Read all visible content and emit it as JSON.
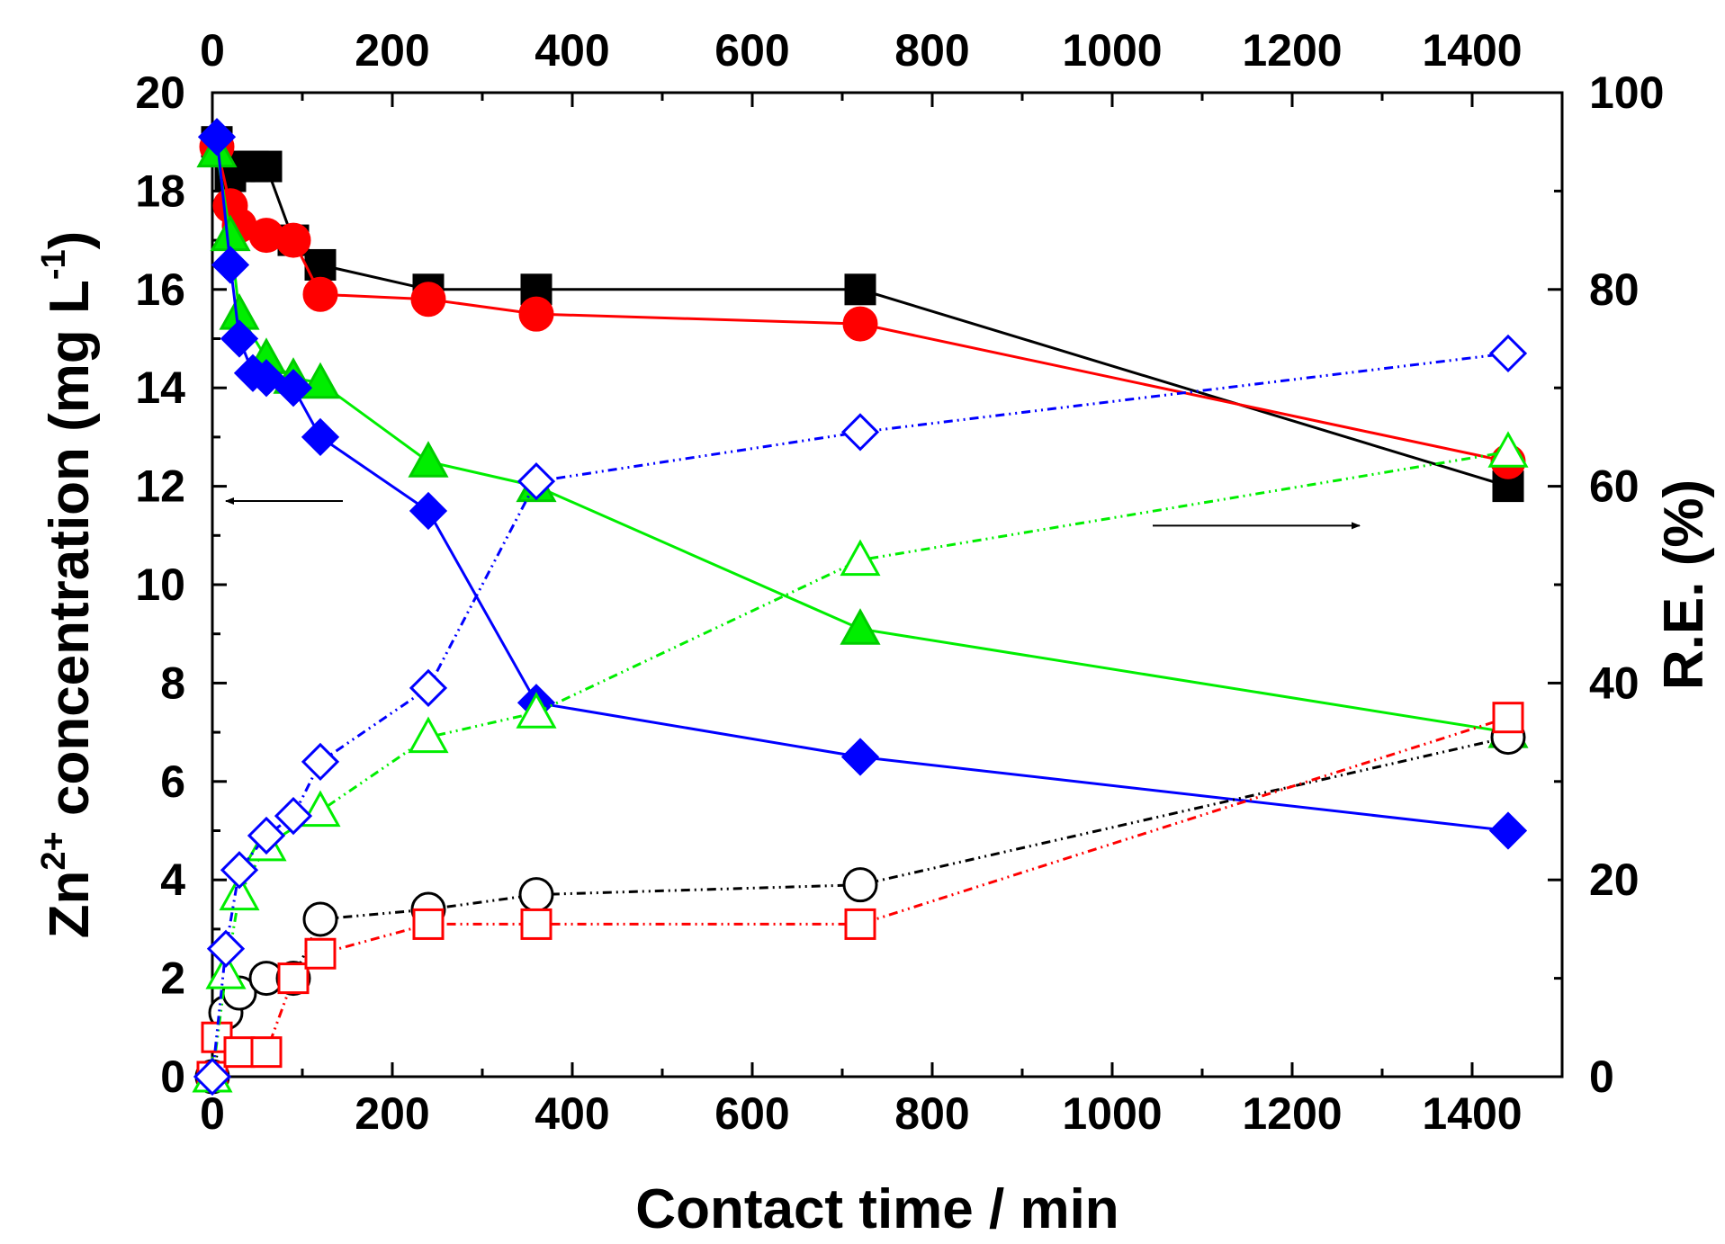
{
  "chart_data": {
    "type": "scatter",
    "title": "",
    "xlabel": "Contact time / min",
    "ylabel_left": {
      "prefix": "Zn",
      "superscript": "2+",
      "suffix": " concentration (mg L",
      "unit_superscript": "-1",
      "close": ")"
    },
    "ylabel_right": "R.E. (%)",
    "xlim": [
      0,
      1500
    ],
    "ylim_left": [
      0,
      20
    ],
    "ylim_right": [
      0,
      100
    ],
    "x_ticks": [
      0,
      200,
      400,
      600,
      800,
      1000,
      1200,
      1400
    ],
    "y_left_ticks": [
      0,
      2,
      4,
      6,
      8,
      10,
      12,
      14,
      16,
      18,
      20
    ],
    "y_right_ticks": [
      0,
      20,
      40,
      60,
      80,
      100
    ],
    "grid": false,
    "series": [
      {
        "name": "black-squares-filled",
        "axis": "left",
        "marker": "square",
        "filled": true,
        "color": "#000000",
        "line": "solid",
        "x": [
          5,
          20,
          30,
          45,
          60,
          90,
          120,
          240,
          360,
          720,
          1440
        ],
        "y": [
          19.0,
          18.3,
          18.5,
          18.5,
          18.5,
          17.0,
          16.5,
          16.0,
          16.0,
          16.0,
          12.0
        ]
      },
      {
        "name": "red-circles-filled",
        "axis": "left",
        "marker": "circle",
        "filled": true,
        "color": "#ff0000",
        "line": "solid",
        "x": [
          5,
          20,
          30,
          60,
          90,
          120,
          240,
          360,
          720,
          1440
        ],
        "y": [
          18.9,
          17.7,
          17.3,
          17.1,
          17.0,
          15.9,
          15.8,
          15.5,
          15.3,
          12.5
        ]
      },
      {
        "name": "green-triangles-filled",
        "axis": "left",
        "marker": "triangle",
        "filled": true,
        "color": "#00ee00",
        "line": "solid",
        "x": [
          5,
          20,
          30,
          60,
          90,
          120,
          240,
          360,
          720,
          1440
        ],
        "y": [
          18.8,
          17.1,
          15.5,
          14.6,
          14.2,
          14.1,
          12.5,
          12.0,
          9.1,
          7.0
        ]
      },
      {
        "name": "blue-diamonds-filled",
        "axis": "left",
        "marker": "diamond",
        "filled": true,
        "color": "#0000ff",
        "line": "solid",
        "x": [
          5,
          20,
          30,
          45,
          60,
          90,
          120,
          240,
          360,
          720,
          1440
        ],
        "y": [
          19.1,
          16.5,
          15.0,
          14.3,
          14.2,
          14.0,
          13.0,
          11.5,
          7.6,
          6.5,
          5.0
        ]
      },
      {
        "name": "black-circles-open",
        "axis": "right",
        "marker": "circle",
        "filled": false,
        "color": "#000000",
        "line": "dash-dot-dot",
        "x": [
          0,
          15,
          30,
          60,
          90,
          120,
          240,
          360,
          720,
          1440
        ],
        "y": [
          0,
          6.5,
          8.5,
          10,
          10,
          16,
          17,
          18.5,
          19.5,
          34.5
        ]
      },
      {
        "name": "red-squares-open",
        "axis": "right",
        "marker": "square",
        "filled": false,
        "color": "#ff0000",
        "line": "dash-dot-dot",
        "x": [
          0,
          5,
          30,
          60,
          90,
          120,
          240,
          360,
          720,
          1440
        ],
        "y": [
          0,
          4,
          2.5,
          2.5,
          10,
          12.5,
          15.5,
          15.5,
          15.5,
          36.5
        ]
      },
      {
        "name": "green-triangles-open",
        "axis": "right",
        "marker": "triangle",
        "filled": false,
        "color": "#00ee00",
        "line": "dash-dot-dot",
        "x": [
          0,
          15,
          30,
          60,
          120,
          240,
          360,
          720,
          1440
        ],
        "y": [
          0,
          10.5,
          18.5,
          23.5,
          27,
          34.5,
          37,
          52.5,
          63.5
        ]
      },
      {
        "name": "blue-diamonds-open",
        "axis": "right",
        "marker": "diamond",
        "filled": false,
        "color": "#0000ff",
        "line": "dash-dot-dot",
        "x": [
          0,
          15,
          30,
          60,
          90,
          120,
          240,
          360,
          720,
          1440
        ],
        "y": [
          0,
          13,
          21,
          24.5,
          26.5,
          32,
          39.5,
          60.5,
          65.5,
          73.5
        ]
      }
    ],
    "annotations": [
      {
        "name": "arrow-left",
        "text": "",
        "direction": "left",
        "x_from": 145,
        "x_to": 15,
        "y_left": 11.7
      },
      {
        "name": "arrow-right",
        "text": "",
        "direction": "right",
        "x_from": 1045,
        "x_to": 1275,
        "y_left": 11.2
      }
    ]
  }
}
